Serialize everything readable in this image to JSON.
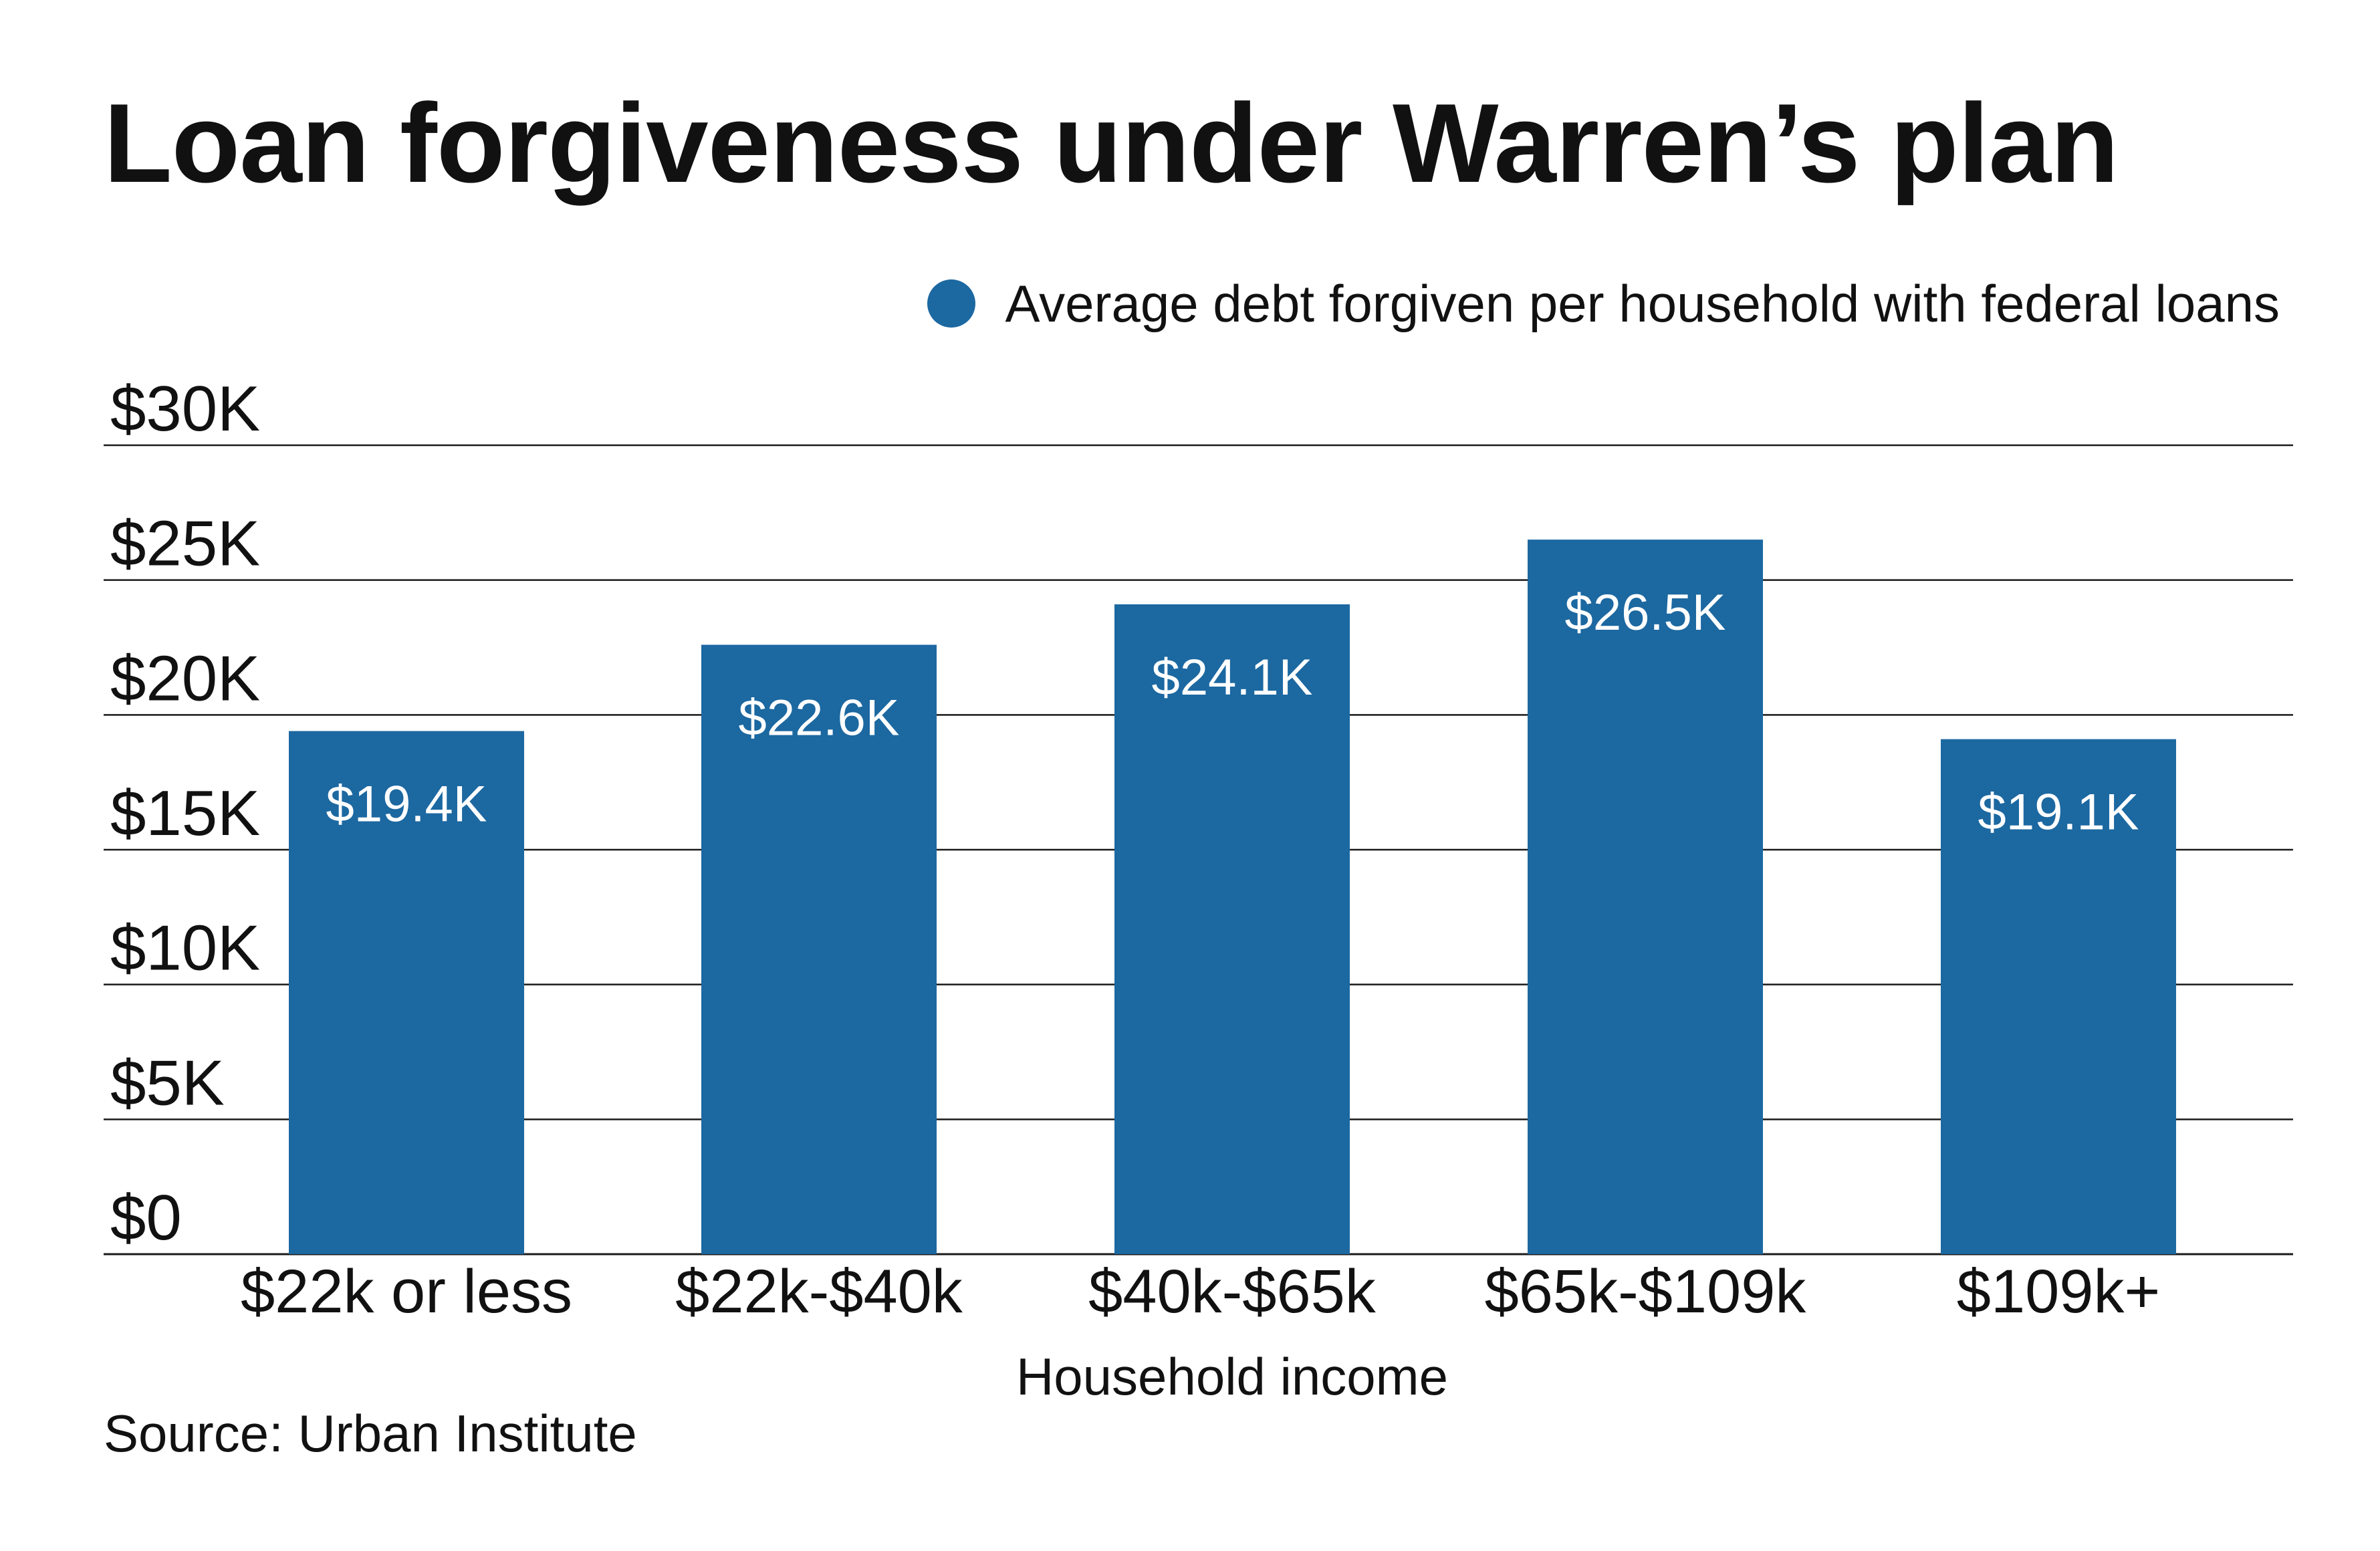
{
  "chart_data": {
    "type": "bar",
    "title": "Loan forgiveness under Warren’s plan",
    "legend": [
      "Average debt forgiven per household with federal loans"
    ],
    "legend_position": "top-right",
    "categories": [
      "$22k or less",
      "$22k-$40k",
      "$40k-$65k",
      "$65k-$109k",
      "$109k+"
    ],
    "series": [
      {
        "name": "Average debt forgiven per household with federal loans",
        "values": [
          19.4,
          22.6,
          24.1,
          26.5,
          19.1
        ],
        "data_labels": [
          "$19.4K",
          "$22.6K",
          "$24.1K",
          "$26.5K",
          "$19.1K"
        ]
      }
    ],
    "xlabel": "Household income",
    "ylabel": "",
    "ylim": [
      0,
      30
    ],
    "yticks": [
      0,
      5,
      10,
      15,
      20,
      25,
      30
    ],
    "ytick_labels": [
      "$0",
      "$5K",
      "$10K",
      "$15K",
      "$20K",
      "$25K",
      "$30K"
    ],
    "grid": true,
    "source": "Source: Urban Institute"
  },
  "colors": {
    "bar": "#1c68a1",
    "bar_label": "#ffffff",
    "gridline": "#1a1a1a",
    "text": "#111111"
  }
}
